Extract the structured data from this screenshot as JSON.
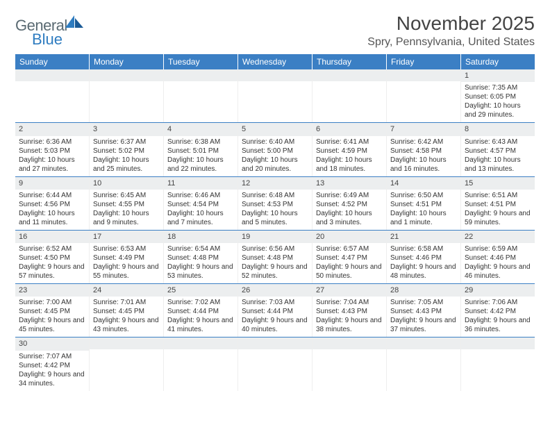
{
  "logo": {
    "general": "General",
    "blue": "Blue"
  },
  "title": "November 2025",
  "location": "Spry, Pennsylvania, United States",
  "colors": {
    "header_bg": "#3b7fc4",
    "header_text": "#ffffff",
    "daynum_bg": "#eceeef",
    "body_text": "#333333",
    "row_border": "#3b7fc4",
    "logo_blue": "#2e7cc0",
    "logo_gray": "#5a6a72"
  },
  "day_names": [
    "Sunday",
    "Monday",
    "Tuesday",
    "Wednesday",
    "Thursday",
    "Friday",
    "Saturday"
  ],
  "weeks": [
    [
      {
        "n": "",
        "sr": "",
        "ss": "",
        "dl": ""
      },
      {
        "n": "",
        "sr": "",
        "ss": "",
        "dl": ""
      },
      {
        "n": "",
        "sr": "",
        "ss": "",
        "dl": ""
      },
      {
        "n": "",
        "sr": "",
        "ss": "",
        "dl": ""
      },
      {
        "n": "",
        "sr": "",
        "ss": "",
        "dl": ""
      },
      {
        "n": "",
        "sr": "",
        "ss": "",
        "dl": ""
      },
      {
        "n": "1",
        "sr": "Sunrise: 7:35 AM",
        "ss": "Sunset: 6:05 PM",
        "dl": "Daylight: 10 hours and 29 minutes."
      }
    ],
    [
      {
        "n": "2",
        "sr": "Sunrise: 6:36 AM",
        "ss": "Sunset: 5:03 PM",
        "dl": "Daylight: 10 hours and 27 minutes."
      },
      {
        "n": "3",
        "sr": "Sunrise: 6:37 AM",
        "ss": "Sunset: 5:02 PM",
        "dl": "Daylight: 10 hours and 25 minutes."
      },
      {
        "n": "4",
        "sr": "Sunrise: 6:38 AM",
        "ss": "Sunset: 5:01 PM",
        "dl": "Daylight: 10 hours and 22 minutes."
      },
      {
        "n": "5",
        "sr": "Sunrise: 6:40 AM",
        "ss": "Sunset: 5:00 PM",
        "dl": "Daylight: 10 hours and 20 minutes."
      },
      {
        "n": "6",
        "sr": "Sunrise: 6:41 AM",
        "ss": "Sunset: 4:59 PM",
        "dl": "Daylight: 10 hours and 18 minutes."
      },
      {
        "n": "7",
        "sr": "Sunrise: 6:42 AM",
        "ss": "Sunset: 4:58 PM",
        "dl": "Daylight: 10 hours and 16 minutes."
      },
      {
        "n": "8",
        "sr": "Sunrise: 6:43 AM",
        "ss": "Sunset: 4:57 PM",
        "dl": "Daylight: 10 hours and 13 minutes."
      }
    ],
    [
      {
        "n": "9",
        "sr": "Sunrise: 6:44 AM",
        "ss": "Sunset: 4:56 PM",
        "dl": "Daylight: 10 hours and 11 minutes."
      },
      {
        "n": "10",
        "sr": "Sunrise: 6:45 AM",
        "ss": "Sunset: 4:55 PM",
        "dl": "Daylight: 10 hours and 9 minutes."
      },
      {
        "n": "11",
        "sr": "Sunrise: 6:46 AM",
        "ss": "Sunset: 4:54 PM",
        "dl": "Daylight: 10 hours and 7 minutes."
      },
      {
        "n": "12",
        "sr": "Sunrise: 6:48 AM",
        "ss": "Sunset: 4:53 PM",
        "dl": "Daylight: 10 hours and 5 minutes."
      },
      {
        "n": "13",
        "sr": "Sunrise: 6:49 AM",
        "ss": "Sunset: 4:52 PM",
        "dl": "Daylight: 10 hours and 3 minutes."
      },
      {
        "n": "14",
        "sr": "Sunrise: 6:50 AM",
        "ss": "Sunset: 4:51 PM",
        "dl": "Daylight: 10 hours and 1 minute."
      },
      {
        "n": "15",
        "sr": "Sunrise: 6:51 AM",
        "ss": "Sunset: 4:51 PM",
        "dl": "Daylight: 9 hours and 59 minutes."
      }
    ],
    [
      {
        "n": "16",
        "sr": "Sunrise: 6:52 AM",
        "ss": "Sunset: 4:50 PM",
        "dl": "Daylight: 9 hours and 57 minutes."
      },
      {
        "n": "17",
        "sr": "Sunrise: 6:53 AM",
        "ss": "Sunset: 4:49 PM",
        "dl": "Daylight: 9 hours and 55 minutes."
      },
      {
        "n": "18",
        "sr": "Sunrise: 6:54 AM",
        "ss": "Sunset: 4:48 PM",
        "dl": "Daylight: 9 hours and 53 minutes."
      },
      {
        "n": "19",
        "sr": "Sunrise: 6:56 AM",
        "ss": "Sunset: 4:48 PM",
        "dl": "Daylight: 9 hours and 52 minutes."
      },
      {
        "n": "20",
        "sr": "Sunrise: 6:57 AM",
        "ss": "Sunset: 4:47 PM",
        "dl": "Daylight: 9 hours and 50 minutes."
      },
      {
        "n": "21",
        "sr": "Sunrise: 6:58 AM",
        "ss": "Sunset: 4:46 PM",
        "dl": "Daylight: 9 hours and 48 minutes."
      },
      {
        "n": "22",
        "sr": "Sunrise: 6:59 AM",
        "ss": "Sunset: 4:46 PM",
        "dl": "Daylight: 9 hours and 46 minutes."
      }
    ],
    [
      {
        "n": "23",
        "sr": "Sunrise: 7:00 AM",
        "ss": "Sunset: 4:45 PM",
        "dl": "Daylight: 9 hours and 45 minutes."
      },
      {
        "n": "24",
        "sr": "Sunrise: 7:01 AM",
        "ss": "Sunset: 4:45 PM",
        "dl": "Daylight: 9 hours and 43 minutes."
      },
      {
        "n": "25",
        "sr": "Sunrise: 7:02 AM",
        "ss": "Sunset: 4:44 PM",
        "dl": "Daylight: 9 hours and 41 minutes."
      },
      {
        "n": "26",
        "sr": "Sunrise: 7:03 AM",
        "ss": "Sunset: 4:44 PM",
        "dl": "Daylight: 9 hours and 40 minutes."
      },
      {
        "n": "27",
        "sr": "Sunrise: 7:04 AM",
        "ss": "Sunset: 4:43 PM",
        "dl": "Daylight: 9 hours and 38 minutes."
      },
      {
        "n": "28",
        "sr": "Sunrise: 7:05 AM",
        "ss": "Sunset: 4:43 PM",
        "dl": "Daylight: 9 hours and 37 minutes."
      },
      {
        "n": "29",
        "sr": "Sunrise: 7:06 AM",
        "ss": "Sunset: 4:42 PM",
        "dl": "Daylight: 9 hours and 36 minutes."
      }
    ],
    [
      {
        "n": "30",
        "sr": "Sunrise: 7:07 AM",
        "ss": "Sunset: 4:42 PM",
        "dl": "Daylight: 9 hours and 34 minutes."
      },
      {
        "n": "",
        "sr": "",
        "ss": "",
        "dl": ""
      },
      {
        "n": "",
        "sr": "",
        "ss": "",
        "dl": ""
      },
      {
        "n": "",
        "sr": "",
        "ss": "",
        "dl": ""
      },
      {
        "n": "",
        "sr": "",
        "ss": "",
        "dl": ""
      },
      {
        "n": "",
        "sr": "",
        "ss": "",
        "dl": ""
      },
      {
        "n": "",
        "sr": "",
        "ss": "",
        "dl": ""
      }
    ]
  ]
}
